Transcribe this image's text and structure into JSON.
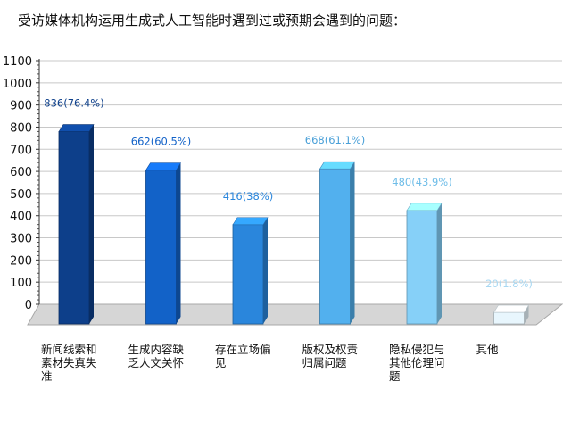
{
  "chart_data": {
    "type": "bar",
    "title": "受访媒体机构运用生成式人工智能时遇到过或预期会遇到的问题：",
    "categories": [
      "新闻线索和素材失真失准",
      "生成内容缺乏人文关怀",
      "存在立场偏见",
      "版权及权责归属问题",
      "隐私侵犯与其他伦理问题",
      "其他"
    ],
    "values": [
      836,
      662,
      416,
      668,
      480,
      20
    ],
    "data_labels": [
      "836(76.4%)",
      "662(60.5%)",
      "416(38%)",
      "668(61.1%)",
      "480(43.9%)",
      "20(1.8%)"
    ],
    "ylim": [
      0,
      1100
    ],
    "yticks": [
      0,
      100,
      200,
      300,
      400,
      500,
      600,
      700,
      800,
      900,
      1000,
      1100
    ],
    "grid": true,
    "legend": "none",
    "style": "3d-bars",
    "bar_colors": [
      "#0d3f8a",
      "#1262c8",
      "#2a86dc",
      "#52b0ee",
      "#86d0f8",
      "#e8f6fd"
    ],
    "label_colors": [
      "#0d3f8a",
      "#1262c8",
      "#2a86dc",
      "#4aa0d8",
      "#6fbde8",
      "#a9d8f2"
    ]
  }
}
